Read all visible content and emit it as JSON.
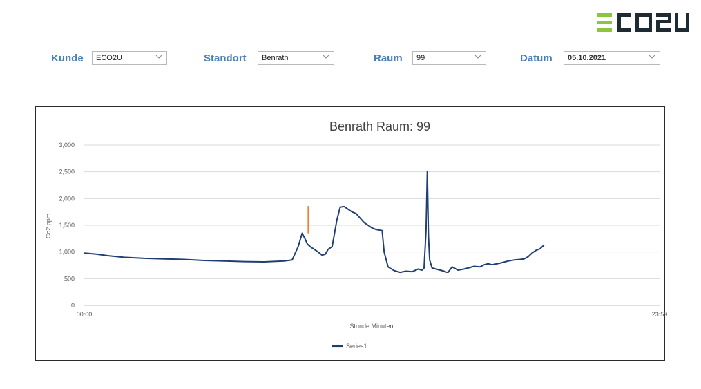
{
  "brand": {
    "logo_text": "ECO2U",
    "color_green": "#8cc63e",
    "color_dark": "#1e2b33"
  },
  "filters": {
    "kunde_label": "Kunde",
    "kunde_value": "ECO2U",
    "standort_label": "Standort",
    "standort_value": "Benrath",
    "raum_label": "Raum",
    "raum_value": "99",
    "datum_label": "Datum",
    "datum_value": "05.10.2021",
    "label_color": "#4a7fb5"
  },
  "chart_data": {
    "type": "line",
    "title": "Benrath Raum: 99",
    "xlabel": "Stunde:Minuten",
    "ylabel": "Co2 ppm",
    "x_tick_labels": [
      "00:00",
      "23:59"
    ],
    "y_ticks": [
      0,
      500,
      1000,
      1500,
      2000,
      2500,
      3000
    ],
    "y_tick_labels": [
      "0",
      "500",
      "1,000",
      "1,500",
      "2,000",
      "2,500",
      "3,000"
    ],
    "ylim": [
      0,
      3000
    ],
    "xlim_minutes": [
      0,
      1439
    ],
    "grid": true,
    "legend_position": "bottom",
    "series": [
      {
        "name": "Series1",
        "color": "#1f3f73",
        "x_minutes": [
          0,
          15,
          30,
          60,
          100,
          150,
          200,
          250,
          300,
          350,
          400,
          450,
          500,
          520,
          535,
          545,
          552,
          558,
          565,
          575,
          585,
          595,
          603,
          610,
          620,
          632,
          640,
          650,
          660,
          670,
          680,
          700,
          720,
          730,
          745,
          750,
          760,
          775,
          790,
          805,
          820,
          835,
          845,
          850,
          855,
          858,
          861,
          864,
          870,
          880,
          890,
          900,
          905,
          910,
          920,
          935,
          950,
          960,
          975,
          990,
          1000,
          1010,
          1020,
          1040,
          1060,
          1075,
          1090,
          1100,
          1110,
          1120,
          1130,
          1140,
          1150
        ],
        "y_values": [
          980,
          970,
          960,
          930,
          900,
          880,
          870,
          860,
          840,
          830,
          820,
          815,
          830,
          850,
          1100,
          1350,
          1250,
          1150,
          1100,
          1050,
          1000,
          940,
          960,
          1050,
          1100,
          1600,
          1840,
          1850,
          1800,
          1750,
          1720,
          1550,
          1450,
          1420,
          1400,
          1000,
          720,
          650,
          620,
          640,
          630,
          680,
          660,
          700,
          1400,
          2510,
          1300,
          850,
          700,
          680,
          660,
          640,
          625,
          620,
          720,
          660,
          680,
          700,
          730,
          720,
          760,
          780,
          760,
          790,
          830,
          850,
          860,
          870,
          910,
          980,
          1030,
          1060,
          1130
        ]
      }
    ],
    "highlight": {
      "name": "",
      "color": "#ed7d31",
      "x_minutes": 560,
      "y_from": 1350,
      "y_to": 1860
    }
  }
}
